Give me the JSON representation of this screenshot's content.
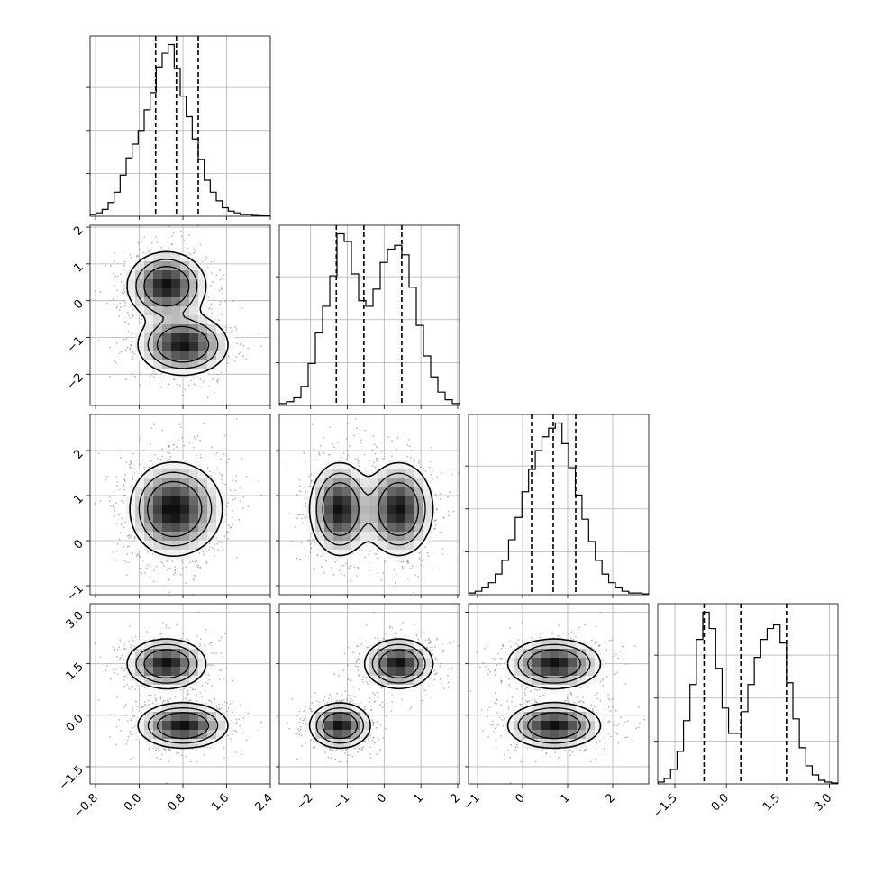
{
  "chart_data": {
    "type": "corner",
    "title": "",
    "variables": [
      {
        "label": "",
        "range": [
          -0.9,
          2.4
        ],
        "ticks": [
          -0.8,
          0.0,
          0.8,
          1.6,
          2.4
        ],
        "tick_labels": [
          "−0.8",
          "0.0",
          "0.8",
          "1.6",
          "2.4"
        ],
        "quantiles": [
          0.3,
          0.68,
          1.08
        ],
        "histogram": [
          0.01,
          0.02,
          0.04,
          0.08,
          0.14,
          0.24,
          0.34,
          0.42,
          0.5,
          0.62,
          0.72,
          0.87,
          0.95,
          1.0,
          0.86,
          0.7,
          0.58,
          0.45,
          0.33,
          0.21,
          0.14,
          0.09,
          0.05,
          0.03,
          0.02,
          0.01,
          0.01,
          0.005,
          0.003,
          0.002
        ]
      },
      {
        "label": "",
        "range": [
          -2.85,
          2.05
        ],
        "ticks": [
          -2,
          -1,
          0,
          1,
          2
        ],
        "tick_labels": [
          "−2",
          "−1",
          "0",
          "1",
          "2"
        ],
        "quantiles": [
          -1.3,
          -0.55,
          0.48
        ],
        "histogram": [
          0.01,
          0.02,
          0.04,
          0.1,
          0.22,
          0.38,
          0.52,
          0.68,
          0.9,
          0.86,
          0.69,
          0.55,
          0.52,
          0.61,
          0.75,
          0.82,
          0.84,
          0.79,
          0.62,
          0.42,
          0.26,
          0.15,
          0.07,
          0.03,
          0.01
        ]
      },
      {
        "label": "",
        "range": [
          -1.2,
          2.8
        ],
        "ticks": [
          -1,
          0,
          1,
          2
        ],
        "tick_labels": [
          "−1",
          "0",
          "1",
          "2"
        ],
        "quantiles": [
          0.2,
          0.68,
          1.18
        ],
        "histogram": [
          0.01,
          0.02,
          0.04,
          0.07,
          0.12,
          0.2,
          0.32,
          0.45,
          0.6,
          0.73,
          0.84,
          0.92,
          0.97,
          1.0,
          0.88,
          0.74,
          0.58,
          0.44,
          0.31,
          0.2,
          0.12,
          0.07,
          0.04,
          0.02,
          0.01,
          0.01,
          0.005
        ]
      },
      {
        "label": "",
        "range": [
          -2.0,
          3.25
        ],
        "ticks": [
          -1.5,
          0.0,
          1.5,
          3.0
        ],
        "tick_labels": [
          "−1.5",
          "0.0",
          "1.5",
          "3.0"
        ],
        "quantiles": [
          -0.65,
          0.42,
          1.75
        ],
        "histogram": [
          0.01,
          0.03,
          0.08,
          0.18,
          0.35,
          0.55,
          0.8,
          0.95,
          0.86,
          0.64,
          0.42,
          0.28,
          0.28,
          0.4,
          0.55,
          0.7,
          0.8,
          0.86,
          0.88,
          0.78,
          0.56,
          0.36,
          0.2,
          0.1,
          0.05,
          0.02,
          0.01,
          0.005
        ]
      }
    ],
    "clusters": [
      {
        "weight": 0.5,
        "mean": [
          0.5,
          0.4,
          0.7,
          1.5
        ],
        "sd": [
          0.35,
          0.45,
          0.5,
          0.35
        ]
      },
      {
        "weight": 0.5,
        "mean": [
          0.8,
          -1.2,
          0.7,
          -0.3
        ],
        "sd": [
          0.4,
          0.4,
          0.5,
          0.32
        ]
      }
    ],
    "contour_levels": [
      0.12,
      0.28,
      0.5
    ],
    "grid": true,
    "legend": "none"
  }
}
